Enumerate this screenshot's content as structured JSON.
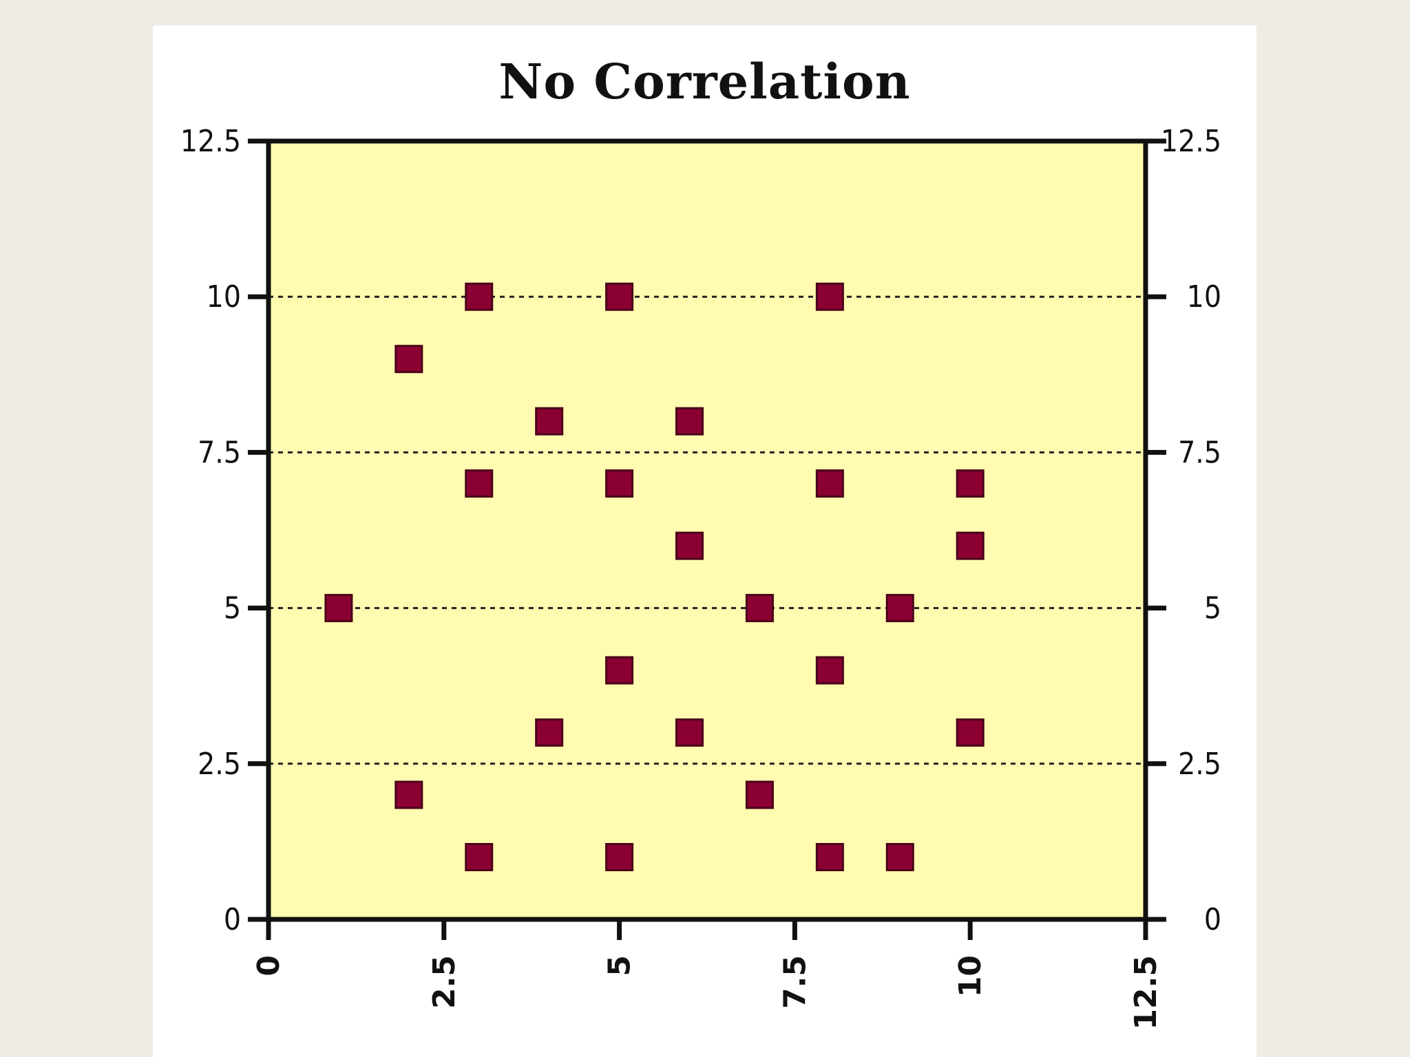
{
  "chart_data": {
    "type": "scatter",
    "title": "No Correlation",
    "xlabel": "",
    "ylabel": "",
    "xlim": [
      0,
      12.5
    ],
    "ylim": [
      0,
      12.5
    ],
    "x_ticks": [
      "0",
      "2.5",
      "5",
      "7.5",
      "10",
      "12.5"
    ],
    "y_ticks": [
      "0",
      "2.5",
      "5",
      "7.5",
      "10",
      "12.5"
    ],
    "y_ticks_right": [
      "0",
      "2.5",
      "5",
      "7.5",
      "10",
      "12.5"
    ],
    "grid": "horizontal dashed",
    "plot_background": "#fffbb0",
    "marker_color": "#8b0032",
    "series": [
      {
        "points": [
          [
            3,
            10
          ],
          [
            5,
            10
          ],
          [
            8,
            10
          ],
          [
            2,
            9
          ],
          [
            4,
            8
          ],
          [
            6,
            8
          ],
          [
            3,
            7
          ],
          [
            5,
            7
          ],
          [
            8,
            7
          ],
          [
            10,
            7
          ],
          [
            6,
            6
          ],
          [
            10,
            6
          ],
          [
            1,
            5
          ],
          [
            7,
            5
          ],
          [
            9,
            5
          ],
          [
            5,
            4
          ],
          [
            8,
            4
          ],
          [
            4,
            3
          ],
          [
            6,
            3
          ],
          [
            10,
            3
          ],
          [
            2,
            2
          ],
          [
            7,
            2
          ],
          [
            3,
            1
          ],
          [
            5,
            1
          ],
          [
            8,
            1
          ],
          [
            9,
            1
          ]
        ]
      }
    ]
  }
}
